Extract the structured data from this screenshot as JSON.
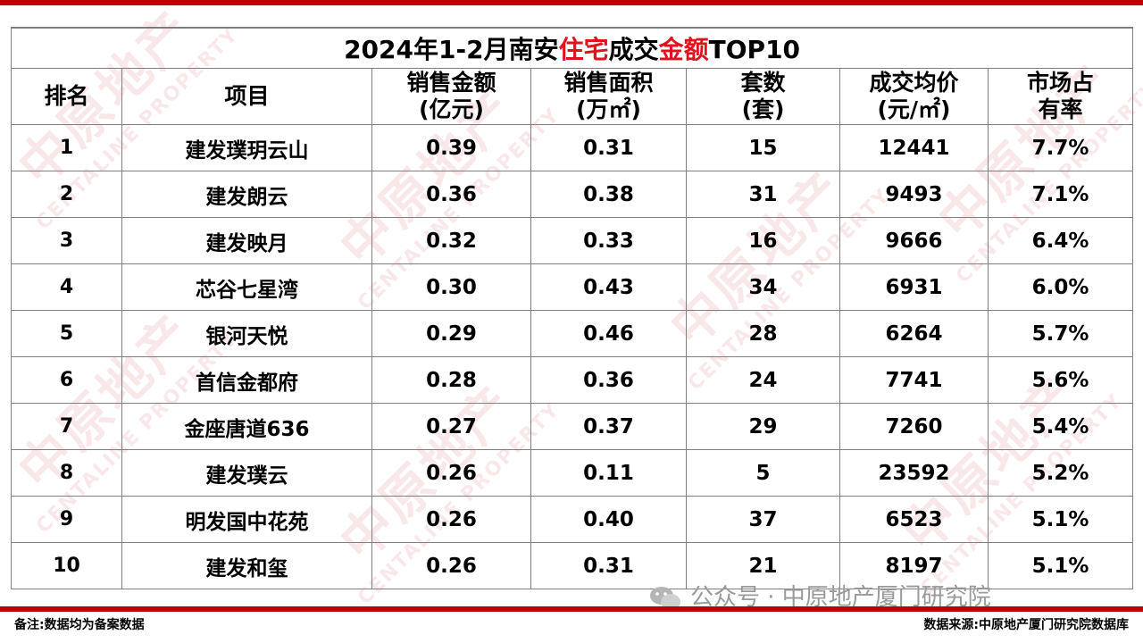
{
  "table": {
    "title_parts": [
      "2024年1-2月南安",
      "住宅",
      "成交",
      "金额",
      "TOP10"
    ],
    "headers": [
      [
        "排名",
        ""
      ],
      [
        "项目",
        ""
      ],
      [
        "销售金额",
        "(亿元)"
      ],
      [
        "销售面积",
        "(万㎡)"
      ],
      [
        "套数",
        "(套)"
      ],
      [
        "成交均价",
        "(元/㎡)"
      ],
      [
        "市场占",
        "有率"
      ]
    ],
    "rows": [
      [
        "1",
        "建发璞玥云山",
        "0.39",
        "0.31",
        "15",
        "12441",
        "7.7%"
      ],
      [
        "2",
        "建发朗云",
        "0.36",
        "0.38",
        "31",
        "9493",
        "7.1%"
      ],
      [
        "3",
        "建发映月",
        "0.32",
        "0.33",
        "16",
        "9666",
        "6.4%"
      ],
      [
        "4",
        "芯谷七星湾",
        "0.30",
        "0.43",
        "34",
        "6931",
        "6.0%"
      ],
      [
        "5",
        "银河天悦",
        "0.29",
        "0.46",
        "28",
        "6264",
        "5.7%"
      ],
      [
        "6",
        "首信金都府",
        "0.28",
        "0.36",
        "24",
        "7741",
        "5.6%"
      ],
      [
        "7",
        "金座唐道636",
        "0.27",
        "0.37",
        "29",
        "7260",
        "5.4%"
      ],
      [
        "8",
        "建发璞云",
        "0.26",
        "0.11",
        "5",
        "23592",
        "5.2%"
      ],
      [
        "9",
        "明发国中花苑",
        "0.26",
        "0.40",
        "37",
        "6523",
        "5.1%"
      ],
      [
        "10",
        "建发和玺",
        "0.26",
        "0.31",
        "21",
        "8197",
        "5.1%"
      ]
    ]
  },
  "footer": {
    "note": "备注:数据均为备案数据",
    "source": "数据来源:中原地产厦门研究院数据库"
  },
  "wechat_label": "公众号 · 中原地产厦门研究院",
  "watermark": {
    "brand": "中原地产",
    "brand_en": "CENTALINE PROPERTY"
  },
  "colors": {
    "accent": "#c00000",
    "highlight": "#e0121e",
    "border": "#7f7f7f"
  }
}
